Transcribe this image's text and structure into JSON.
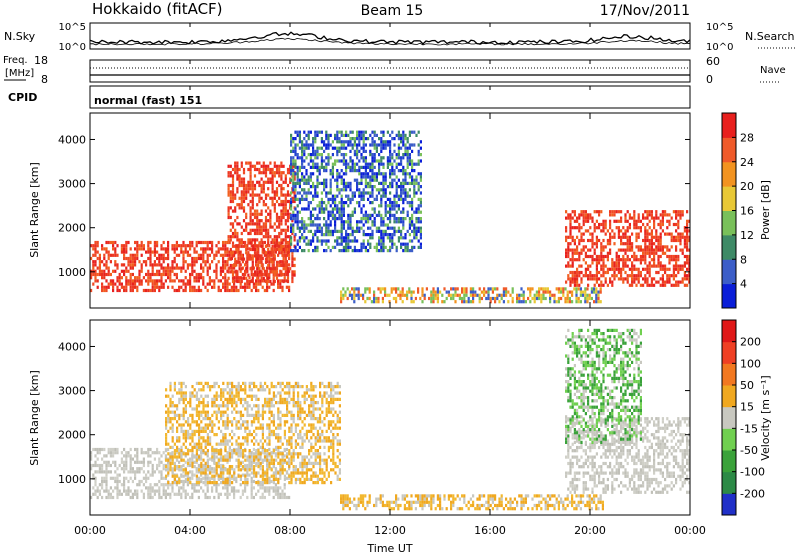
{
  "header": {
    "station": "Hokkaido (fitACF)",
    "beam": "Beam 15",
    "date": "17/Nov/2011"
  },
  "top_panels": {
    "nsky_label": "N.Sky",
    "nsearch_label": "N.Search",
    "nsky_ticks": [
      "10^5",
      "10^0"
    ],
    "nsky_right_ticks": [
      "10^5",
      "10^0"
    ],
    "freq_label_line1": "Freq.",
    "freq_label_line2": "[MHz]",
    "freq_ticks": [
      "18",
      "8"
    ],
    "nave_label": "Nave",
    "nave_ticks": [
      "60",
      "0"
    ],
    "cpid_label": "CPID",
    "cpid_text": "normal (fast) 151"
  },
  "chart_data": [
    {
      "type": "heatmap",
      "title": "",
      "ylabel": "Slant Range [km]",
      "xlabel": "",
      "yticks": [
        "1000",
        "2000",
        "3000",
        "4000"
      ],
      "ylim": [
        180,
        4600
      ],
      "xlim": [
        0,
        24
      ],
      "colorbar_label": "Power [dB]",
      "colorbar_ticks": [
        "4",
        "8",
        "12",
        "16",
        "20",
        "24",
        "28"
      ],
      "colorbar_colors": [
        "#0a1ed8",
        "#3c5ec8",
        "#3e8a66",
        "#79c05a",
        "#e8c836",
        "#f29320",
        "#ef5a2a",
        "#e8201e"
      ],
      "regions": [
        {
          "name": "ground scatter morning",
          "t_start": 0.0,
          "t_end": 8.0,
          "r_start": 600,
          "r_end": 1700,
          "level": "high"
        },
        {
          "name": "enhanced echo 06-08",
          "t_start": 5.5,
          "t_end": 8.2,
          "r_start": 800,
          "r_end": 3500,
          "level": "high"
        },
        {
          "name": "ionospheric echo 08-13",
          "t_start": 8.0,
          "t_end": 13.2,
          "r_start": 1500,
          "r_end": 4200,
          "level": "low"
        },
        {
          "name": "near-range echo 10-20",
          "t_start": 10.0,
          "t_end": 20.5,
          "r_start": 300,
          "r_end": 650,
          "level": "mid"
        },
        {
          "name": "evening echo 19-24",
          "t_start": 19.0,
          "t_end": 24.0,
          "r_start": 700,
          "r_end": 2400,
          "level": "high"
        }
      ]
    },
    {
      "type": "heatmap",
      "title": "",
      "ylabel": "Slant Range [km]",
      "xlabel": "Time UT",
      "xticks": [
        "00:00",
        "04:00",
        "08:00",
        "12:00",
        "16:00",
        "20:00",
        "00:00"
      ],
      "yticks": [
        "1000",
        "2000",
        "3000",
        "4000"
      ],
      "ylim": [
        180,
        4600
      ],
      "xlim": [
        0,
        24
      ],
      "colorbar_label": "Velocity [m s⁻¹]",
      "colorbar_ticks": [
        "200",
        "100",
        "50",
        "15",
        "-15",
        "-50",
        "-100",
        "-200"
      ],
      "colorbar_colors": [
        "#2030c8",
        "#2c8a46",
        "#3aa23a",
        "#70d050",
        "#c8c8c0",
        "#f0a820",
        "#f27820",
        "#ef4024",
        "#e01818"
      ],
      "regions": [
        {
          "name": "ground scatter morning",
          "t_start": 0.0,
          "t_end": 8.0,
          "r_start": 600,
          "r_end": 1700,
          "level": "ground"
        },
        {
          "name": "morning away echoes",
          "t_start": 3.0,
          "t_end": 10.0,
          "r_start": 900,
          "r_end": 3200,
          "level": "away"
        },
        {
          "name": "near-range echo 10-20",
          "t_start": 10.0,
          "t_end": 20.5,
          "r_start": 300,
          "r_end": 650,
          "level": "away"
        },
        {
          "name": "evening ground scatter",
          "t_start": 19.0,
          "t_end": 24.0,
          "r_start": 700,
          "r_end": 2400,
          "level": "ground"
        },
        {
          "name": "evening toward echoes",
          "t_start": 19.0,
          "t_end": 22.0,
          "r_start": 1800,
          "r_end": 4400,
          "level": "toward"
        }
      ]
    }
  ],
  "colors": {
    "frame": "#000000",
    "background": "#ffffff"
  }
}
